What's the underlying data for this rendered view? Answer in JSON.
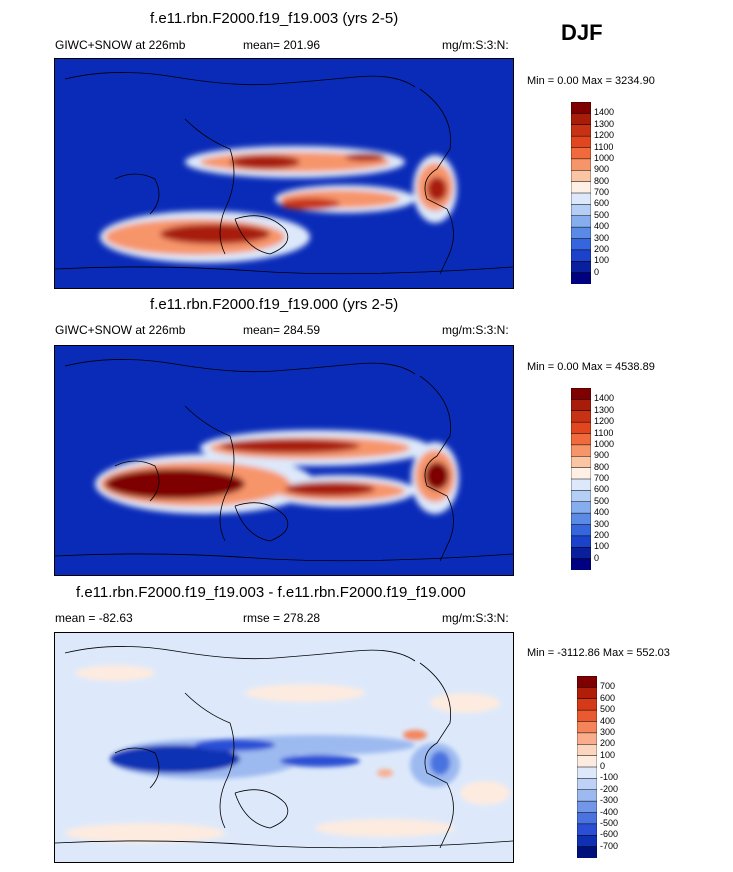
{
  "season": "DJF",
  "panels": [
    {
      "title": "f.e11.rbn.F2000.f19_f19.003 (yrs 2-5)",
      "left_label": "GIWC+SNOW at 226mb",
      "center_label": "mean= 201.96",
      "right_label": "mg/m:S:3:N:",
      "minmax": "Min =   0.00 Max = 3234.90",
      "colorbar": {
        "levels": [
          "1400",
          "1300",
          "1200",
          "1100",
          "1000",
          "900",
          "800",
          "700",
          "600",
          "500",
          "400",
          "300",
          "200",
          "100",
          "0"
        ],
        "colors": [
          "#7f0000",
          "#a81c0a",
          "#c83214",
          "#e2461e",
          "#f06a3c",
          "#f7956a",
          "#fbc4a3",
          "#fff0e6",
          "#dde9fb",
          "#b4cef5",
          "#86adee",
          "#5a8ae6",
          "#3566dd",
          "#1c42cc",
          "#0a1f9c",
          "#000080"
        ]
      }
    },
    {
      "title": "f.e11.rbn.F2000.f19_f19.000 (yrs 2-5)",
      "left_label": "GIWC+SNOW at 226mb",
      "center_label": "mean= 284.59",
      "right_label": "mg/m:S:3:N:",
      "minmax": "Min =   0.00 Max = 4538.89",
      "colorbar": {
        "levels": [
          "1400",
          "1300",
          "1200",
          "1100",
          "1000",
          "900",
          "800",
          "700",
          "600",
          "500",
          "400",
          "300",
          "200",
          "100",
          "0"
        ],
        "colors": [
          "#7f0000",
          "#a81c0a",
          "#c83214",
          "#e2461e",
          "#f06a3c",
          "#f7956a",
          "#fbc4a3",
          "#fff0e6",
          "#dde9fb",
          "#b4cef5",
          "#86adee",
          "#5a8ae6",
          "#3566dd",
          "#1c42cc",
          "#0a1f9c",
          "#000080"
        ]
      }
    },
    {
      "title": "f.e11.rbn.F2000.f19_f19.003 - f.e11.rbn.F2000.f19_f19.000",
      "left_label": "mean = -82.63",
      "center_label": "rmse = 278.28",
      "right_label": "mg/m:S:3:N:",
      "minmax": "Min = -3112.86 Max = 552.03",
      "colorbar": {
        "levels": [
          "700",
          "600",
          "500",
          "400",
          "300",
          "200",
          "100",
          "0",
          "-100",
          "-200",
          "-300",
          "-400",
          "-500",
          "-600",
          "-700"
        ],
        "colors": [
          "#7f0000",
          "#b01e0a",
          "#d43a18",
          "#ea5a30",
          "#f4845a",
          "#f9ad8c",
          "#fcd5bf",
          "#fdebe0",
          "#dde9fb",
          "#bdd2f6",
          "#9cb9f0",
          "#7397e8",
          "#4a73df",
          "#2a4fd4",
          "#1030b4",
          "#00107a"
        ]
      }
    }
  ],
  "chart_data": [
    {
      "type": "heatmap",
      "title": "f.e11.rbn.F2000.f19_f19.003 (yrs 2-5)",
      "variable": "GIWC+SNOW at 226mb",
      "units": "mg/m:S:3:N:",
      "mean": 201.96,
      "min": 0.0,
      "max": 3234.9,
      "contour_levels": [
        0,
        100,
        200,
        300,
        400,
        500,
        600,
        700,
        800,
        900,
        1000,
        1100,
        1200,
        1300,
        1400
      ]
    },
    {
      "type": "heatmap",
      "title": "f.e11.rbn.F2000.f19_f19.000 (yrs 2-5)",
      "variable": "GIWC+SNOW at 226mb",
      "units": "mg/m:S:3:N:",
      "mean": 284.59,
      "min": 0.0,
      "max": 4538.89,
      "contour_levels": [
        0,
        100,
        200,
        300,
        400,
        500,
        600,
        700,
        800,
        900,
        1000,
        1100,
        1200,
        1300,
        1400
      ]
    },
    {
      "type": "heatmap",
      "title": "f.e11.rbn.F2000.f19_f19.003 - f.e11.rbn.F2000.f19_f19.000",
      "units": "mg/m:S:3:N:",
      "mean": -82.63,
      "rmse": 278.28,
      "min": -3112.86,
      "max": 552.03,
      "contour_levels": [
        -700,
        -600,
        -500,
        -400,
        -300,
        -200,
        -100,
        0,
        100,
        200,
        300,
        400,
        500,
        600,
        700
      ]
    }
  ]
}
